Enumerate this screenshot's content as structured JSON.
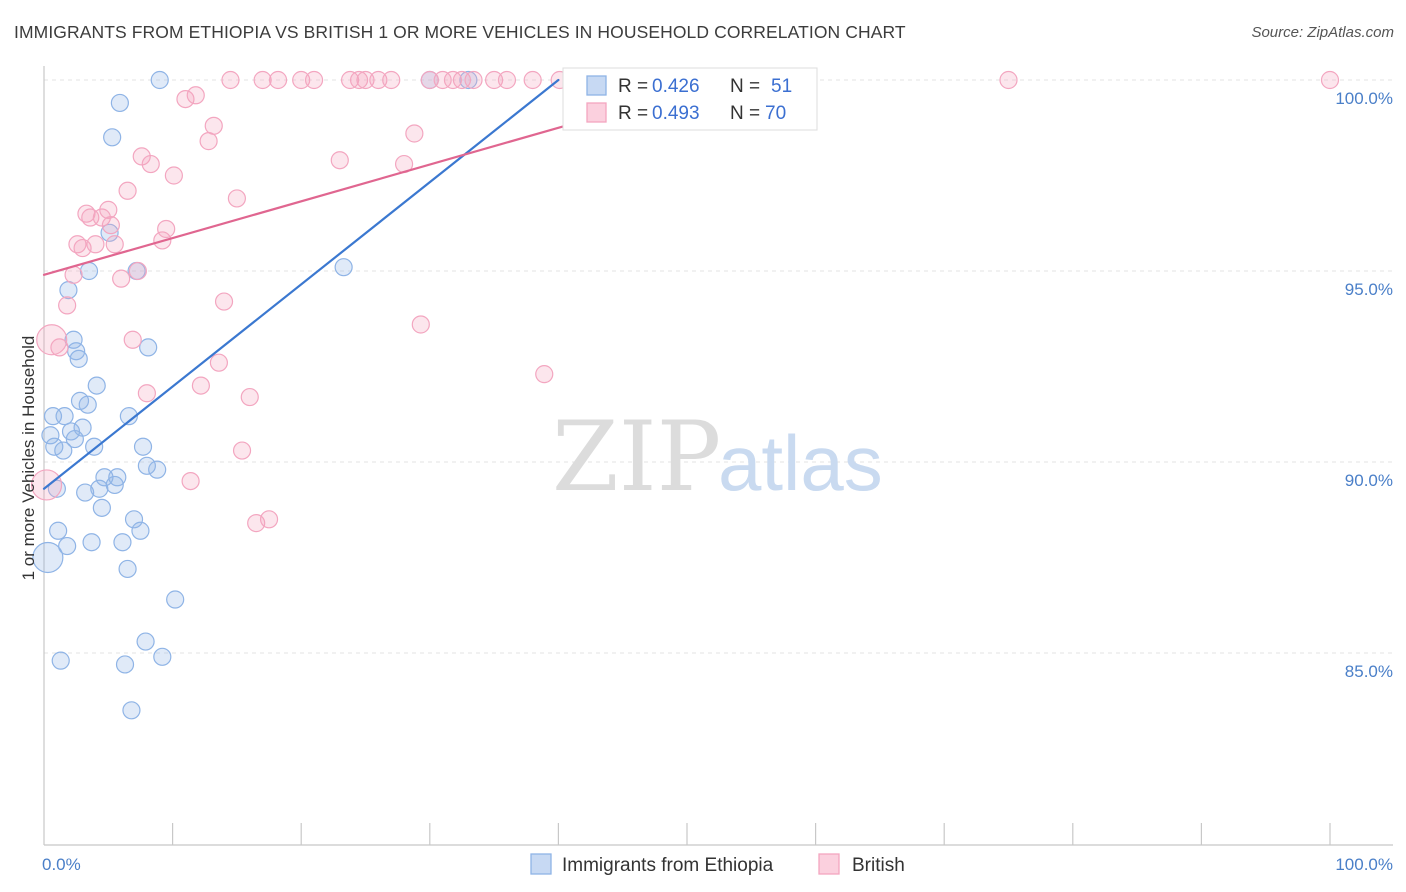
{
  "title": "IMMIGRANTS FROM ETHIOPIA VS BRITISH 1 OR MORE VEHICLES IN HOUSEHOLD CORRELATION CHART",
  "source": "Source: ZipAtlas.com",
  "watermark": {
    "zip": "ZIP",
    "atlas": "atlas"
  },
  "chart_data": {
    "type": "scatter",
    "title": "IMMIGRANTS FROM ETHIOPIA VS BRITISH 1 OR MORE VEHICLES IN HOUSEHOLD CORRELATION CHART",
    "ylabel": "1 or more Vehicles in Household",
    "xlabel": "",
    "xlim": [
      0,
      100
    ],
    "ylim": [
      80.5,
      100.8
    ],
    "x_tick_labels": [
      {
        "value": 0,
        "label": "0.0%"
      },
      {
        "value": 100,
        "label": "100.0%"
      }
    ],
    "y_tick_labels": [
      {
        "value": 100,
        "label": "100.0%"
      },
      {
        "value": 95,
        "label": "95.0%"
      },
      {
        "value": 90,
        "label": "90.0%"
      },
      {
        "value": 85,
        "label": "85.0%"
      }
    ],
    "grid": true,
    "legend": {
      "placement": "top-center",
      "r_label": "R =",
      "n_label": "N =",
      "entries": [
        {
          "series": "Immigrants from Ethiopia",
          "r": "0.426",
          "n": "51"
        },
        {
          "series": "British",
          "r": "0.493",
          "n": "70"
        }
      ]
    },
    "series": [
      {
        "name": "Immigrants from Ethiopia",
        "color": "#8fb4e6",
        "line_color": "#3b78d0",
        "trend": [
          [
            0,
            89.3
          ],
          [
            40,
            100.0
          ]
        ],
        "points": [
          [
            0.3,
            87.5
          ],
          [
            0.5,
            90.7
          ],
          [
            0.7,
            91.2
          ],
          [
            0.8,
            90.4
          ],
          [
            1.0,
            89.3
          ],
          [
            1.1,
            88.2
          ],
          [
            1.3,
            84.8
          ],
          [
            1.5,
            90.3
          ],
          [
            1.6,
            91.2
          ],
          [
            1.8,
            87.8
          ],
          [
            1.9,
            94.5
          ],
          [
            2.1,
            90.8
          ],
          [
            2.3,
            93.2
          ],
          [
            2.4,
            90.6
          ],
          [
            2.5,
            92.9
          ],
          [
            2.7,
            92.7
          ],
          [
            2.8,
            91.6
          ],
          [
            3.0,
            90.9
          ],
          [
            3.2,
            89.2
          ],
          [
            3.4,
            91.5
          ],
          [
            3.5,
            95.0
          ],
          [
            3.7,
            87.9
          ],
          [
            3.9,
            90.4
          ],
          [
            4.1,
            92.0
          ],
          [
            4.3,
            89.3
          ],
          [
            4.5,
            88.8
          ],
          [
            4.7,
            89.6
          ],
          [
            5.1,
            96.0
          ],
          [
            5.3,
            98.5
          ],
          [
            5.5,
            89.4
          ],
          [
            5.7,
            89.6
          ],
          [
            5.9,
            99.4
          ],
          [
            6.1,
            87.9
          ],
          [
            6.3,
            84.7
          ],
          [
            6.5,
            87.2
          ],
          [
            6.6,
            91.2
          ],
          [
            6.8,
            83.5
          ],
          [
            7.0,
            88.5
          ],
          [
            7.2,
            95.0
          ],
          [
            7.5,
            88.2
          ],
          [
            7.7,
            90.4
          ],
          [
            7.9,
            85.3
          ],
          [
            8.0,
            89.9
          ],
          [
            8.1,
            93.0
          ],
          [
            8.8,
            89.8
          ],
          [
            9.0,
            100.0
          ],
          [
            9.2,
            84.9
          ],
          [
            10.2,
            86.4
          ],
          [
            23.3,
            95.1
          ],
          [
            30.0,
            100.0
          ],
          [
            33.0,
            100.0
          ]
        ]
      },
      {
        "name": "British",
        "color": "#f3a6c0",
        "line_color": "#e06690",
        "trend": [
          [
            0,
            94.9
          ],
          [
            53,
            100.0
          ]
        ],
        "points": [
          [
            0.2,
            89.4
          ],
          [
            0.6,
            93.2
          ],
          [
            1.2,
            93.0
          ],
          [
            1.8,
            94.1
          ],
          [
            2.3,
            94.9
          ],
          [
            2.6,
            95.7
          ],
          [
            3.0,
            95.6
          ],
          [
            3.3,
            96.5
          ],
          [
            3.6,
            96.4
          ],
          [
            4.0,
            95.7
          ],
          [
            4.5,
            96.4
          ],
          [
            5.0,
            96.6
          ],
          [
            5.2,
            96.2
          ],
          [
            5.5,
            95.7
          ],
          [
            6.0,
            94.8
          ],
          [
            6.5,
            97.1
          ],
          [
            6.9,
            93.2
          ],
          [
            7.3,
            95.0
          ],
          [
            7.6,
            98.0
          ],
          [
            8.0,
            91.8
          ],
          [
            8.3,
            97.8
          ],
          [
            9.2,
            95.8
          ],
          [
            9.5,
            96.1
          ],
          [
            10.1,
            97.5
          ],
          [
            11.0,
            99.5
          ],
          [
            11.4,
            89.5
          ],
          [
            11.8,
            99.6
          ],
          [
            12.2,
            92.0
          ],
          [
            12.8,
            98.4
          ],
          [
            13.2,
            98.8
          ],
          [
            13.6,
            92.6
          ],
          [
            14.0,
            94.2
          ],
          [
            14.5,
            100.0
          ],
          [
            15.0,
            96.9
          ],
          [
            15.4,
            90.3
          ],
          [
            16.0,
            91.7
          ],
          [
            16.5,
            88.4
          ],
          [
            17.0,
            100.0
          ],
          [
            17.5,
            88.5
          ],
          [
            18.2,
            100.0
          ],
          [
            20.0,
            100.0
          ],
          [
            21.0,
            100.0
          ],
          [
            23.0,
            97.9
          ],
          [
            23.8,
            100.0
          ],
          [
            24.5,
            100.0
          ],
          [
            25.0,
            100.0
          ],
          [
            26.0,
            100.0
          ],
          [
            27.0,
            100.0
          ],
          [
            28.0,
            97.8
          ],
          [
            28.8,
            98.6
          ],
          [
            29.3,
            93.6
          ],
          [
            30.0,
            100.0
          ],
          [
            31.0,
            100.0
          ],
          [
            31.8,
            100.0
          ],
          [
            32.5,
            100.0
          ],
          [
            33.4,
            100.0
          ],
          [
            35.0,
            100.0
          ],
          [
            36.0,
            100.0
          ],
          [
            38.0,
            100.0
          ],
          [
            38.9,
            92.3
          ],
          [
            40.1,
            100.0
          ],
          [
            43.0,
            100.0
          ],
          [
            45.5,
            100.0
          ],
          [
            48.0,
            100.0
          ],
          [
            50.0,
            100.0
          ],
          [
            52.0,
            100.0
          ],
          [
            54.0,
            100.0
          ],
          [
            58.0,
            100.0
          ],
          [
            75.0,
            100.0
          ],
          [
            100.0,
            100.0
          ]
        ]
      }
    ]
  }
}
